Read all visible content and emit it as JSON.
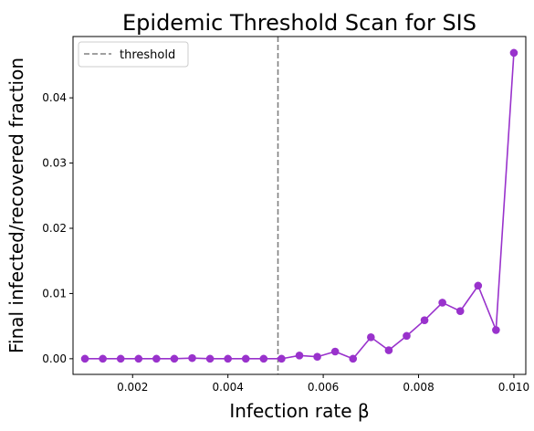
{
  "chart_data": {
    "type": "line",
    "title": "Epidemic Threshold Scan for SIS",
    "xlabel": "Infection rate β",
    "ylabel": "Final infected/recovered fraction",
    "xlim": [
      0.00075,
      0.01025
    ],
    "ylim": [
      -0.0024,
      0.0494
    ],
    "x_ticks": [
      0.002,
      0.004,
      0.006,
      0.008,
      0.01
    ],
    "x_tick_labels": [
      "0.002",
      "0.004",
      "0.006",
      "0.008",
      "0.010"
    ],
    "y_ticks": [
      0.0,
      0.01,
      0.02,
      0.03,
      0.04
    ],
    "y_tick_labels": [
      "0.00",
      "0.01",
      "0.02",
      "0.03",
      "0.04"
    ],
    "grid": false,
    "legend_position": "top-left",
    "series": [
      {
        "color": "#9932cc",
        "marker": "circle",
        "x": [
          0.001,
          0.001375,
          0.00175,
          0.002125,
          0.0025,
          0.002875,
          0.00325,
          0.003625,
          0.004,
          0.004375,
          0.00475,
          0.005125,
          0.0055,
          0.005875,
          0.00625,
          0.006625,
          0.007,
          0.007375,
          0.00775,
          0.008125,
          0.0085,
          0.008875,
          0.00925,
          0.009625,
          0.01
        ],
        "y": [
          0.0,
          0.0,
          0.0,
          0.0,
          0.0,
          0.0,
          0.0001,
          0.0,
          0.0,
          0.0,
          0.0,
          0.0,
          0.0005,
          0.0003,
          0.0011,
          0.0,
          0.0033,
          0.0013,
          0.0035,
          0.0059,
          0.0086,
          0.0073,
          0.0112,
          0.0044,
          0.0469
        ]
      }
    ],
    "threshold": {
      "label": "threshold",
      "x": 0.00505,
      "color": "#808080",
      "style": "dashed"
    }
  }
}
